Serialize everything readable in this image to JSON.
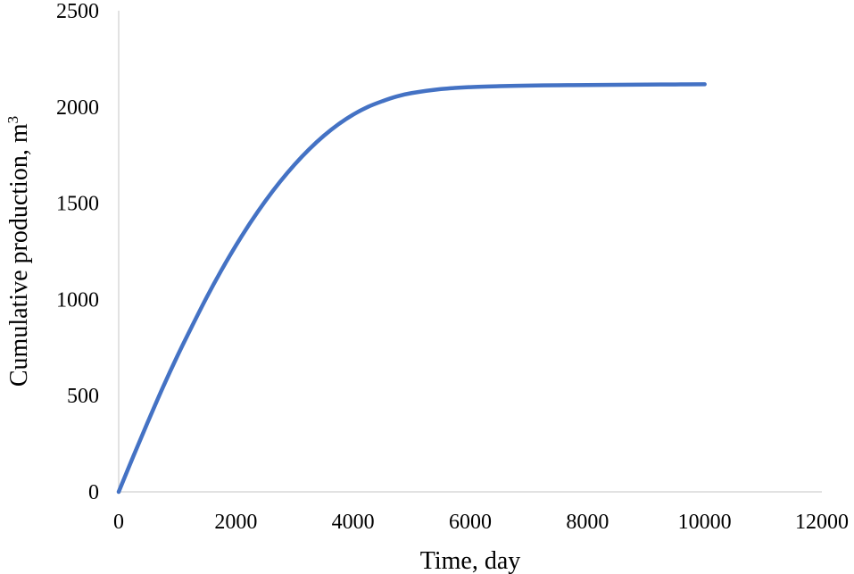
{
  "chart_data": {
    "type": "line",
    "title": "",
    "xlabel": "Time, day",
    "ylabel": "Cumulative production, m",
    "ylabel_superscript": "3",
    "xlim": [
      0,
      12000
    ],
    "ylim": [
      0,
      2500
    ],
    "xticks": [
      0,
      2000,
      4000,
      6000,
      8000,
      10000,
      12000
    ],
    "yticks": [
      0,
      500,
      1000,
      1500,
      2000,
      2500
    ],
    "grid": false,
    "legend": "none",
    "colors": {
      "series": "#4472c4",
      "axis": "#d9d9d9"
    },
    "series": [
      {
        "x": [
          0,
          250,
          500,
          750,
          1000,
          1250,
          1500,
          1750,
          2000,
          2250,
          2500,
          2750,
          3000,
          3250,
          3500,
          3750,
          4000,
          4250,
          4500,
          4750,
          5000,
          5500,
          6000,
          6500,
          7000,
          7500,
          8000,
          8500,
          9000,
          9500,
          10000
        ],
        "y": [
          0,
          185,
          365,
          540,
          705,
          860,
          1010,
          1150,
          1280,
          1400,
          1510,
          1610,
          1700,
          1780,
          1850,
          1910,
          1960,
          2000,
          2030,
          2055,
          2072,
          2093,
          2103,
          2108,
          2111,
          2113,
          2114,
          2115,
          2116,
          2117,
          2118
        ]
      }
    ]
  }
}
